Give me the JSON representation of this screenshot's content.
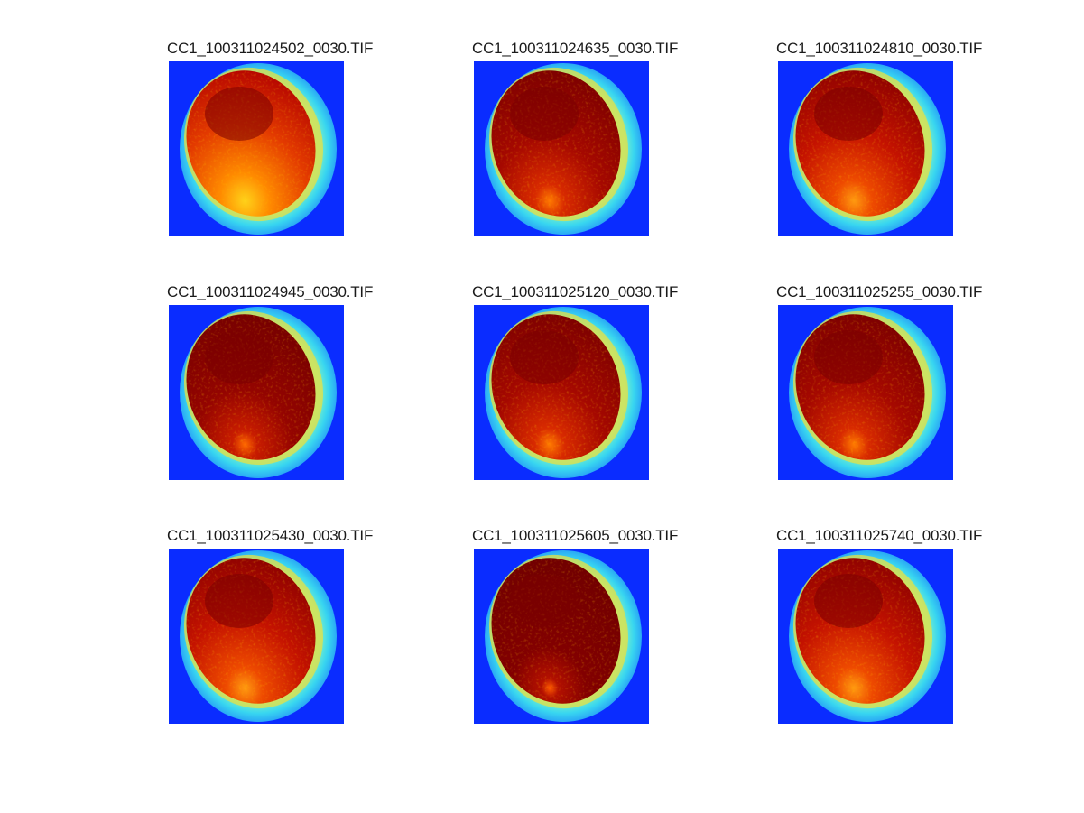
{
  "panels": [
    {
      "title": "CC1_100311024502_0030.TIF",
      "variant": "bright"
    },
    {
      "title": "CC1_100311024635_0030.TIF",
      "variant": "dark"
    },
    {
      "title": "CC1_100311024810_0030.TIF",
      "variant": "medium"
    },
    {
      "title": "CC1_100311024945_0030.TIF",
      "variant": "darker"
    },
    {
      "title": "CC1_100311025120_0030.TIF",
      "variant": "dark"
    },
    {
      "title": "CC1_100311025255_0030.TIF",
      "variant": "dark"
    },
    {
      "title": "CC1_100311025430_0030.TIF",
      "variant": "medium"
    },
    {
      "title": "CC1_100311025605_0030.TIF",
      "variant": "darkest"
    },
    {
      "title": "CC1_100311025740_0030.TIF",
      "variant": "medium"
    }
  ],
  "colors": {
    "background_field": "#0a2cff",
    "ring_outer": "#38d6f0",
    "ring_inner": "#7af0c8",
    "core_dark": "#7a0000",
    "core_red": "#d21a00",
    "core_orange": "#ff6a00",
    "core_yellow": "#ffd21a"
  }
}
